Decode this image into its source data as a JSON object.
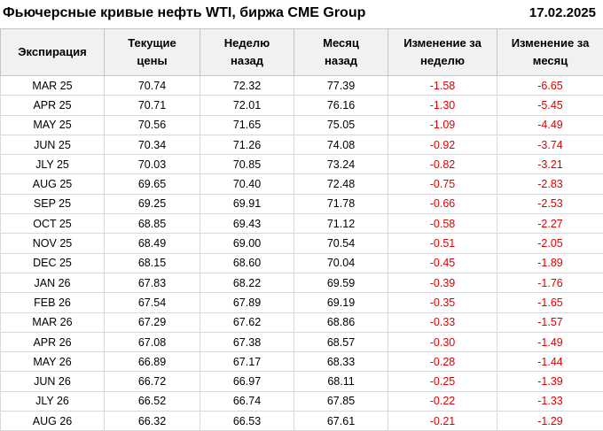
{
  "header": {
    "title": "Фьючерсные кривые нефть WTI, биржа CME Group",
    "date": "17.02.2025"
  },
  "table": {
    "header_lines": [
      [
        "Экспирация"
      ],
      [
        "Текущие",
        "цены"
      ],
      [
        "Неделю",
        "назад"
      ],
      [
        "Месяц",
        "назад"
      ],
      [
        "Изменение за",
        "неделю"
      ],
      [
        "Изменение за",
        "месяц"
      ]
    ],
    "column_keys": [
      "expiration",
      "current-price",
      "week-ago",
      "month-ago",
      "change-week",
      "change-month"
    ]
  },
  "chart_data": {
    "type": "table",
    "title": "Фьючерсные кривые нефть WTI, биржа CME Group",
    "date": "17.02.2025",
    "columns": [
      "Экспирация",
      "Текущие цены",
      "Неделю назад",
      "Месяц назад",
      "Изменение за неделю",
      "Изменение за месяц"
    ],
    "rows": [
      [
        "MAR 25",
        "70.74",
        "72.32",
        "77.39",
        "-1.58",
        "-6.65"
      ],
      [
        "APR 25",
        "70.71",
        "72.01",
        "76.16",
        "-1.30",
        "-5.45"
      ],
      [
        "MAY 25",
        "70.56",
        "71.65",
        "75.05",
        "-1.09",
        "-4.49"
      ],
      [
        "JUN 25",
        "70.34",
        "71.26",
        "74.08",
        "-0.92",
        "-3.74"
      ],
      [
        "JLY 25",
        "70.03",
        "70.85",
        "73.24",
        "-0.82",
        "-3.21"
      ],
      [
        "AUG 25",
        "69.65",
        "70.40",
        "72.48",
        "-0.75",
        "-2.83"
      ],
      [
        "SEP 25",
        "69.25",
        "69.91",
        "71.78",
        "-0.66",
        "-2.53"
      ],
      [
        "OCT 25",
        "68.85",
        "69.43",
        "71.12",
        "-0.58",
        "-2.27"
      ],
      [
        "NOV 25",
        "68.49",
        "69.00",
        "70.54",
        "-0.51",
        "-2.05"
      ],
      [
        "DEC 25",
        "68.15",
        "68.60",
        "70.04",
        "-0.45",
        "-1.89"
      ],
      [
        "JAN 26",
        "67.83",
        "68.22",
        "69.59",
        "-0.39",
        "-1.76"
      ],
      [
        "FEB 26",
        "67.54",
        "67.89",
        "69.19",
        "-0.35",
        "-1.65"
      ],
      [
        "MAR 26",
        "67.29",
        "67.62",
        "68.86",
        "-0.33",
        "-1.57"
      ],
      [
        "APR 26",
        "67.08",
        "67.38",
        "68.57",
        "-0.30",
        "-1.49"
      ],
      [
        "MAY 26",
        "66.89",
        "67.17",
        "68.33",
        "-0.28",
        "-1.44"
      ],
      [
        "JUN 26",
        "66.72",
        "66.97",
        "68.11",
        "-0.25",
        "-1.39"
      ],
      [
        "JLY 26",
        "66.52",
        "66.74",
        "67.85",
        "-0.22",
        "-1.33"
      ],
      [
        "AUG 26",
        "66.32",
        "66.53",
        "67.61",
        "-0.21",
        "-1.29"
      ]
    ]
  },
  "colors": {
    "negative_value": "#e00000",
    "header_background": "#f1f1f1",
    "grid_border": "#d9d9d9",
    "text": "#000000"
  }
}
